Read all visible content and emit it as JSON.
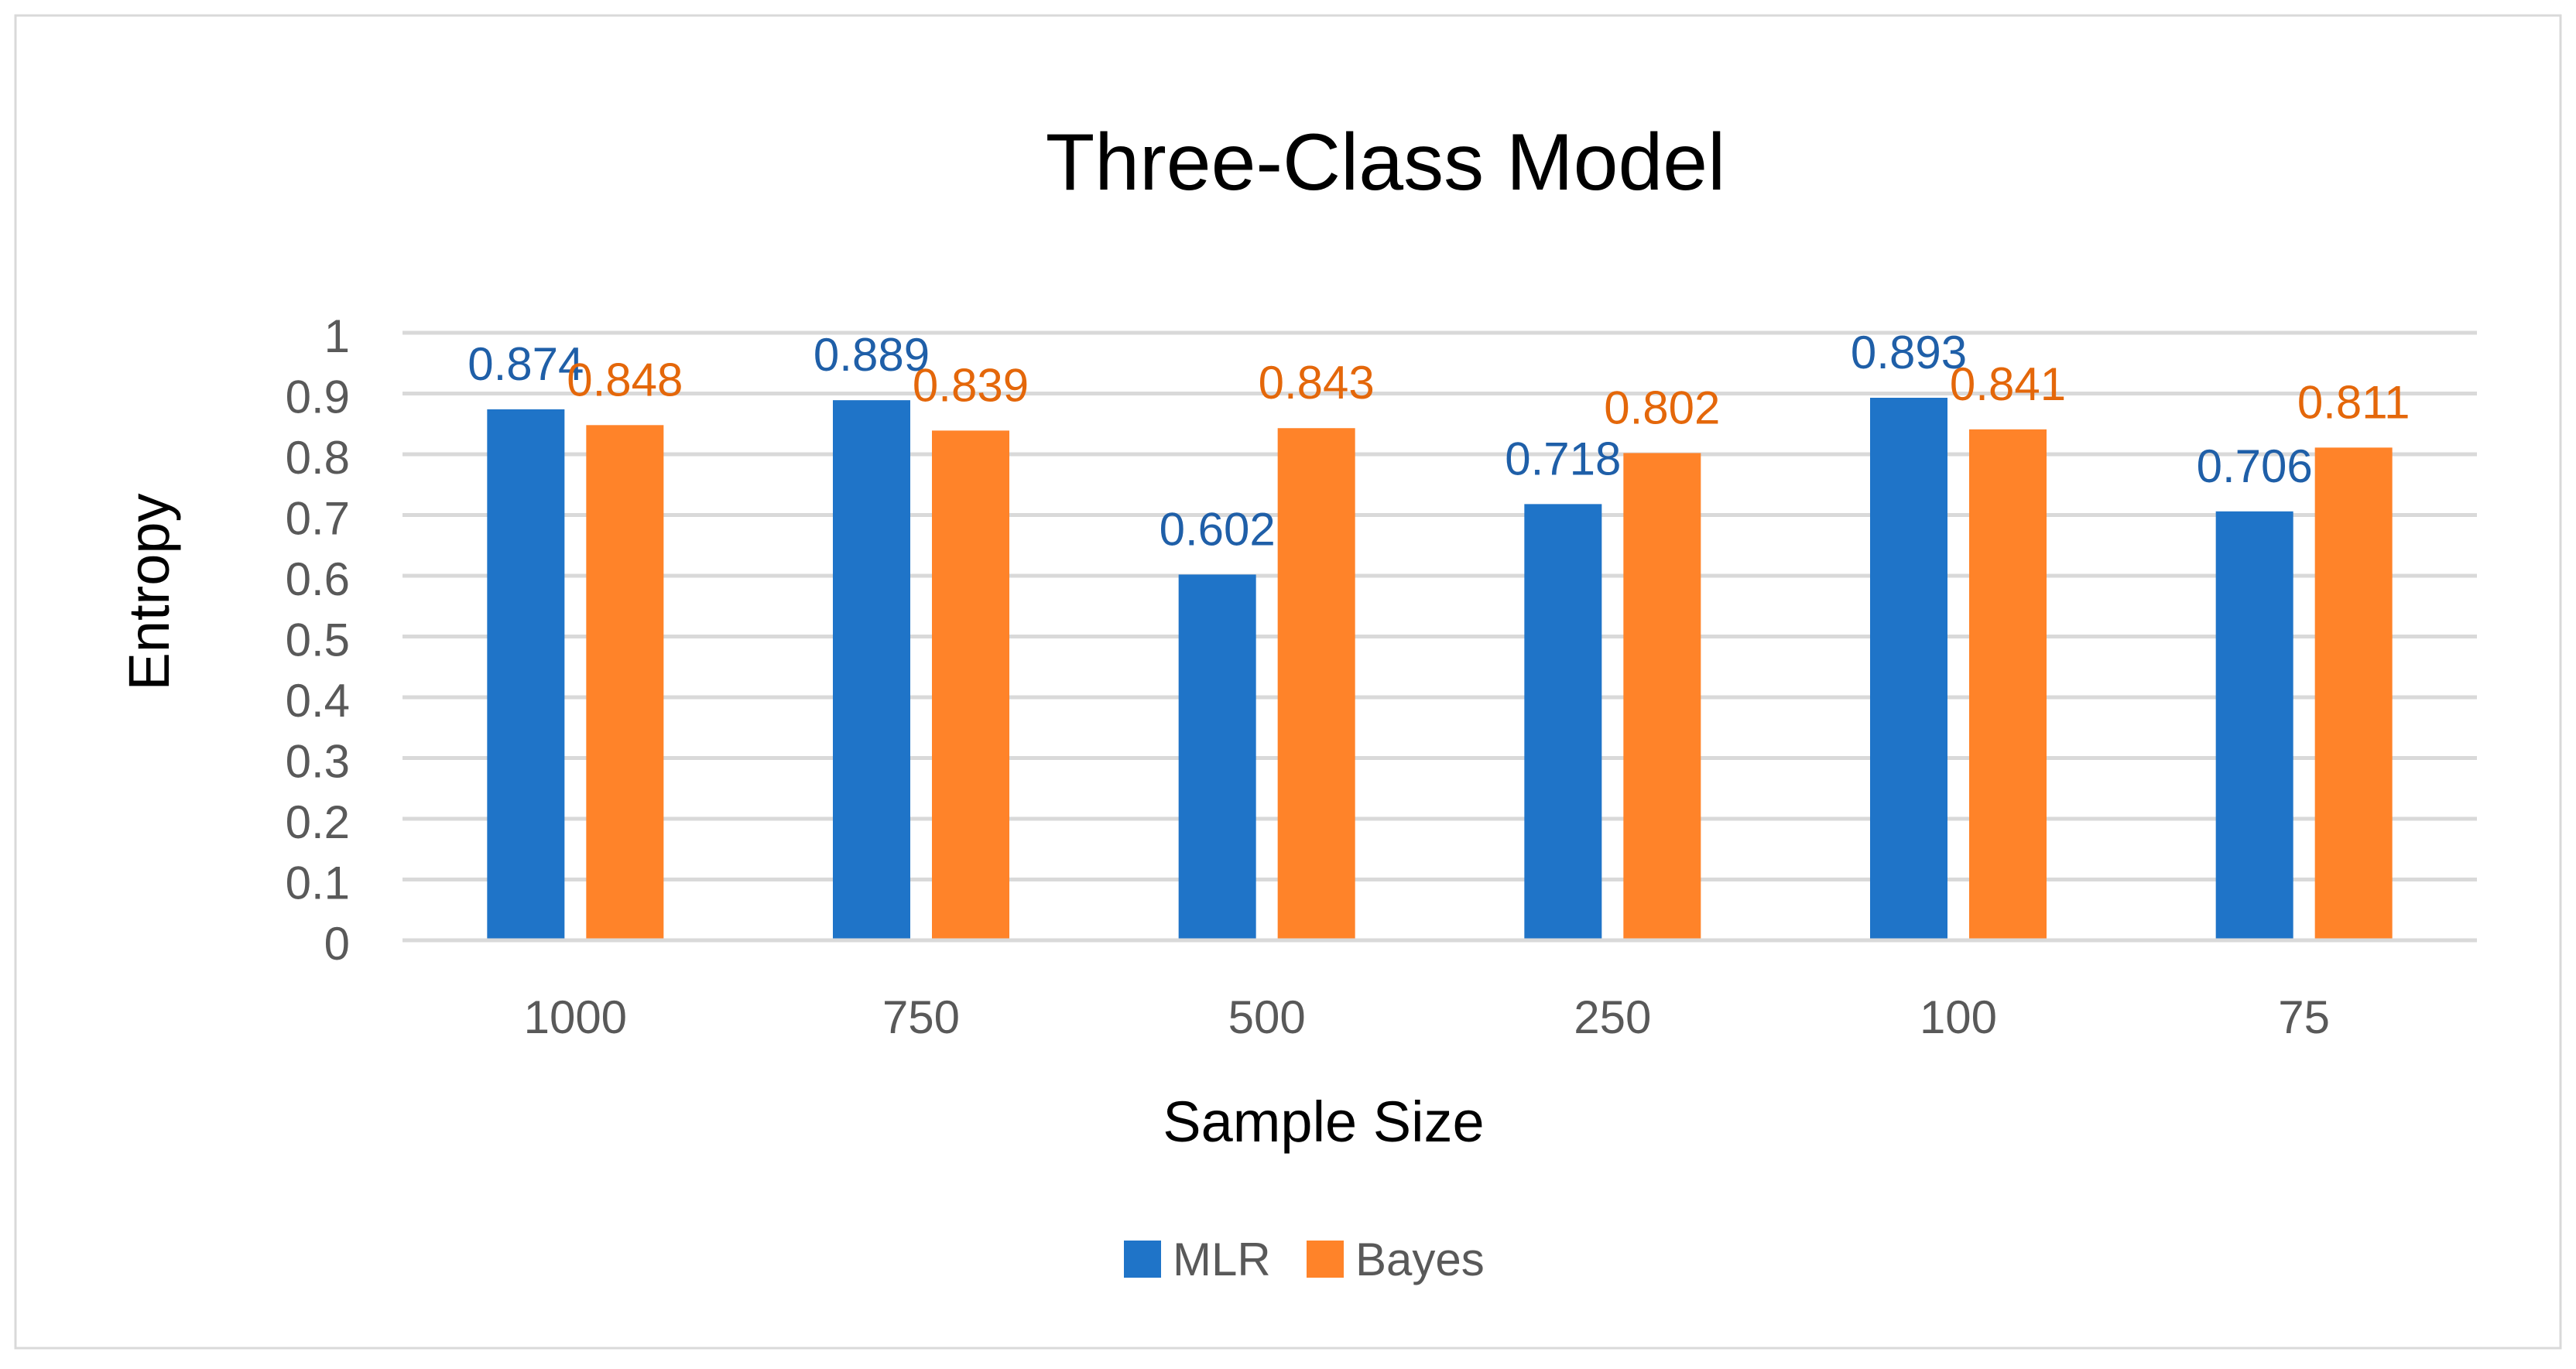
{
  "chart_data": {
    "type": "bar",
    "title": "Three-Class Model",
    "xlabel": "Sample Size",
    "ylabel": "Entropy",
    "categories": [
      "1000",
      "750",
      "500",
      "250",
      "100",
      "75"
    ],
    "series": [
      {
        "name": "MLR",
        "color": "#1F74C8",
        "label_color": "#1F5FA8",
        "values": [
          0.874,
          0.889,
          0.602,
          0.718,
          0.893,
          0.706
        ]
      },
      {
        "name": "Bayes",
        "color": "#FF8329",
        "label_color": "#E4670A",
        "values": [
          0.848,
          0.839,
          0.843,
          0.802,
          0.841,
          0.811
        ]
      }
    ],
    "ylim": [
      0,
      1
    ],
    "yticks": [
      "0",
      "0.1",
      "0.2",
      "0.3",
      "0.4",
      "0.5",
      "0.6",
      "0.7",
      "0.8",
      "0.9",
      "1"
    ],
    "grid": true,
    "legend": "bottom-center"
  }
}
